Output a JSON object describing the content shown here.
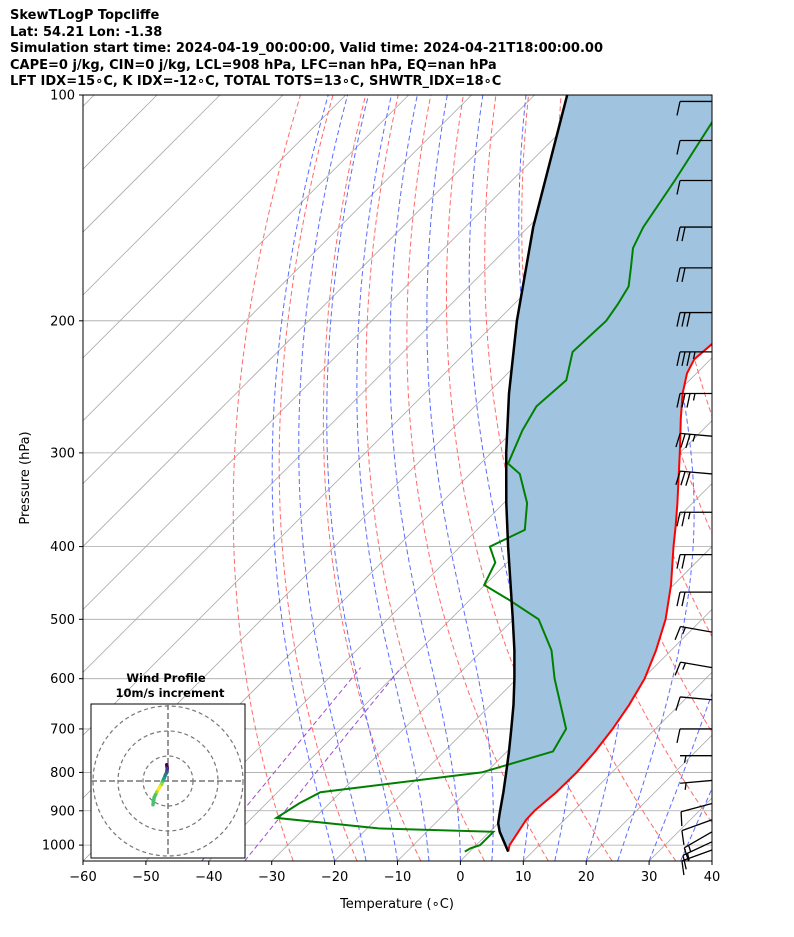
{
  "header": {
    "title": "SkewTLogP Topcliffe",
    "location": "Lat: 54.21   Lon: -1.38",
    "times": "Simulation start time: 2024-04-19_00:00:00, Valid time: 2024-04-21T18:00:00.00",
    "params": "CAPE=0 j/kg, CIN=0 j/kg, LCL=908 hPa, LFC=nan hPa, EQ=nan hPa",
    "indices": "LFT IDX=15∘C, K IDX=-12∘C, TOTAL TOTS=13∘C, SHWTR_IDX=18∘C"
  },
  "inset": {
    "title": "Wind Profile",
    "subtitle": "10m/s increment"
  },
  "colors": {
    "temperature": "#ff0000",
    "dewpoint": "#008000",
    "parcel": "#000000",
    "shade": "#a0c4df",
    "dry_adiabat": "#ff6a6a",
    "moist_adiabat": "#5a6cff",
    "mixing_ratio": "#9d4dcf",
    "isotherm": "#a8a8a8"
  },
  "chart_data": {
    "type": "line",
    "xlabel": "Temperature (∘C)",
    "ylabel": "Pressure (hPa)",
    "xlim": [
      -60,
      40
    ],
    "ylim": [
      1050,
      100
    ],
    "yscale": "log",
    "skew": true,
    "grid": true,
    "x_ticks": [
      "−60",
      "−50",
      "−40",
      "−30",
      "−20",
      "−10",
      "0",
      "10",
      "20",
      "30",
      "40"
    ],
    "y_ticks": [
      "1000",
      "900",
      "800",
      "700",
      "600",
      "500",
      "400",
      "300",
      "200",
      "100"
    ],
    "series": [
      {
        "role": "temperature",
        "points": [
          [
            1020,
            6.1
          ],
          [
            1000,
            5.3
          ],
          [
            925,
            3.9
          ],
          [
            900,
            3.8
          ],
          [
            850,
            4.3
          ],
          [
            800,
            4.4
          ],
          [
            750,
            4.0
          ],
          [
            700,
            3.2
          ],
          [
            650,
            2.0
          ],
          [
            600,
            0.3
          ],
          [
            550,
            -2.4
          ],
          [
            500,
            -5.8
          ],
          [
            450,
            -10.4
          ],
          [
            400,
            -16.1
          ],
          [
            375,
            -19.1
          ],
          [
            350,
            -22.4
          ],
          [
            300,
            -30.0
          ],
          [
            270,
            -35.3
          ],
          [
            250,
            -39.0
          ],
          [
            235,
            -41.5
          ],
          [
            225,
            -42.6
          ],
          [
            210,
            -42.0
          ],
          [
            200,
            -42.0
          ],
          [
            190,
            -42.1
          ],
          [
            180,
            -43.2
          ],
          [
            170,
            -44.8
          ],
          [
            160,
            -46.1
          ],
          [
            150,
            -47.9
          ],
          [
            140,
            -49.8
          ],
          [
            125,
            -52.6
          ],
          [
            110,
            -55.4
          ],
          [
            100,
            -57.5
          ]
        ]
      },
      {
        "role": "dewpoint",
        "points": [
          [
            1020,
            -0.8
          ],
          [
            1010,
            -0.4
          ],
          [
            1000,
            0.6
          ],
          [
            960,
            0.6
          ],
          [
            950,
            -18.2
          ],
          [
            920,
            -36.1
          ],
          [
            880,
            -34.8
          ],
          [
            850,
            -33.2
          ],
          [
            800,
            -10.7
          ],
          [
            750,
            -2.7
          ],
          [
            700,
            -4.2
          ],
          [
            600,
            -14.0
          ],
          [
            550,
            -19.0
          ],
          [
            500,
            -26.0
          ],
          [
            470,
            -34.1
          ],
          [
            450,
            -40.1
          ],
          [
            420,
            -41.9
          ],
          [
            400,
            -45.3
          ],
          [
            380,
            -42.4
          ],
          [
            350,
            -46.3
          ],
          [
            320,
            -52.1
          ],
          [
            310,
            -55.6
          ],
          [
            280,
            -58.6
          ],
          [
            260,
            -60.2
          ],
          [
            240,
            -59.6
          ],
          [
            220,
            -63.1
          ],
          [
            200,
            -62.7
          ],
          [
            190,
            -63.5
          ],
          [
            180,
            -64.6
          ],
          [
            170,
            -67.2
          ],
          [
            160,
            -70.0
          ],
          [
            150,
            -71.7
          ],
          [
            130,
            -74.1
          ],
          [
            100,
            -79.0
          ]
        ]
      },
      {
        "role": "parcel",
        "points": [
          [
            1020,
            6.1
          ],
          [
            960,
            1.6
          ],
          [
            935,
            0.0
          ],
          [
            908,
            -1.3
          ],
          [
            850,
            -4.1
          ],
          [
            800,
            -6.8
          ],
          [
            750,
            -9.7
          ],
          [
            700,
            -12.9
          ],
          [
            650,
            -16.4
          ],
          [
            600,
            -20.4
          ],
          [
            550,
            -24.9
          ],
          [
            500,
            -30.1
          ],
          [
            450,
            -35.9
          ],
          [
            400,
            -42.4
          ],
          [
            350,
            -49.6
          ],
          [
            300,
            -57.6
          ],
          [
            250,
            -66.6
          ],
          [
            200,
            -76.9
          ],
          [
            150,
            -89.2
          ],
          [
            100,
            -104.8
          ]
        ]
      }
    ],
    "wind_barbs": [
      {
        "p": 1015,
        "speed_kt": 10,
        "dir": 250
      },
      {
        "p": 990,
        "speed_kt": 15,
        "dir": 245
      },
      {
        "p": 960,
        "speed_kt": 15,
        "dir": 240
      },
      {
        "p": 925,
        "speed_kt": 10,
        "dir": 250
      },
      {
        "p": 880,
        "speed_kt": 10,
        "dir": 255
      },
      {
        "p": 820,
        "speed_kt": 5,
        "dir": 265
      },
      {
        "p": 760,
        "speed_kt": 5,
        "dir": 270
      },
      {
        "p": 700,
        "speed_kt": 10,
        "dir": 270
      },
      {
        "p": 640,
        "speed_kt": 10,
        "dir": 275
      },
      {
        "p": 580,
        "speed_kt": 15,
        "dir": 280
      },
      {
        "p": 520,
        "speed_kt": 15,
        "dir": 280
      },
      {
        "p": 460,
        "speed_kt": 20,
        "dir": 270
      },
      {
        "p": 410,
        "speed_kt": 20,
        "dir": 270
      },
      {
        "p": 360,
        "speed_kt": 25,
        "dir": 270
      },
      {
        "p": 320,
        "speed_kt": 30,
        "dir": 275
      },
      {
        "p": 285,
        "speed_kt": 35,
        "dir": 275
      },
      {
        "p": 250,
        "speed_kt": 35,
        "dir": 270
      },
      {
        "p": 220,
        "speed_kt": 35,
        "dir": 270
      },
      {
        "p": 195,
        "speed_kt": 30,
        "dir": 270
      },
      {
        "p": 170,
        "speed_kt": 20,
        "dir": 270
      },
      {
        "p": 150,
        "speed_kt": 20,
        "dir": 270
      },
      {
        "p": 130,
        "speed_kt": 10,
        "dir": 270
      },
      {
        "p": 115,
        "speed_kt": 10,
        "dir": 270
      },
      {
        "p": 102,
        "speed_kt": 10,
        "dir": 270
      }
    ],
    "hodograph": {
      "ring_spacing_ms": 10,
      "points": [
        [
          -0.5,
          6.5
        ],
        [
          -0.3,
          5.0
        ],
        [
          -0.5,
          3.5
        ],
        [
          -1.0,
          2.5
        ],
        [
          -1.6,
          1.0
        ],
        [
          -2.3,
          -0.4
        ],
        [
          -2.5,
          -1.2
        ],
        [
          -3.2,
          -2.3
        ],
        [
          -4.5,
          -4.4
        ],
        [
          -5.0,
          -5.5
        ],
        [
          -5.5,
          -6.5
        ],
        [
          -5.8,
          -8.0
        ],
        [
          -6.0,
          -9.5
        ]
      ]
    }
  }
}
